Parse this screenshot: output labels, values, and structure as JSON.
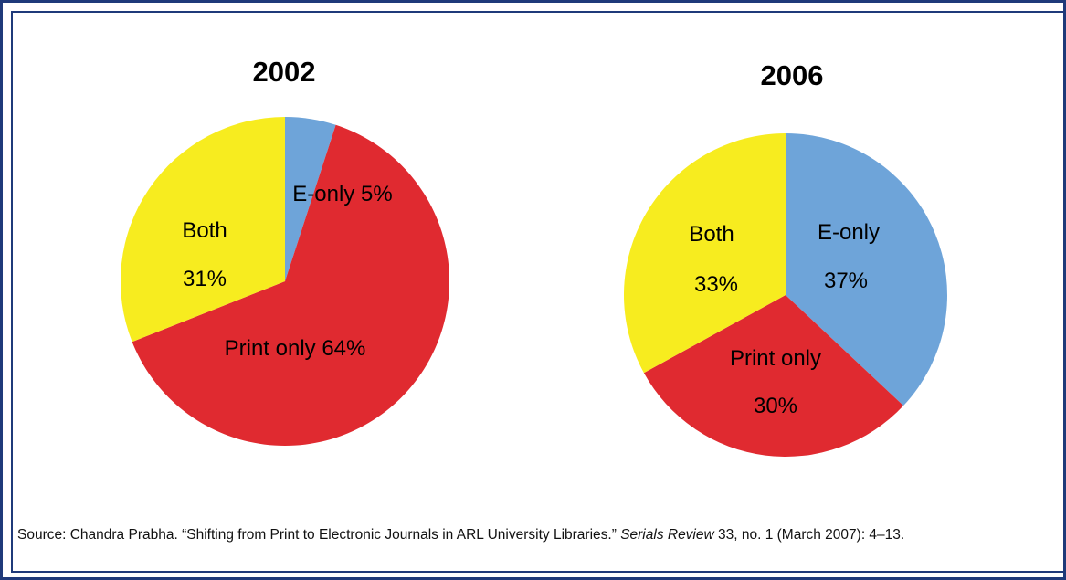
{
  "chart_data": [
    {
      "type": "pie",
      "title": "2002",
      "slices": [
        {
          "label": "E-only",
          "value": 5,
          "value_text": "5%",
          "color": "#6ea4d9"
        },
        {
          "label": "Print only",
          "value": 64,
          "value_text": "64%",
          "color": "#e02a30"
        },
        {
          "label": "Both",
          "value": 31,
          "value_text": "31%",
          "color": "#f7ec1f"
        }
      ]
    },
    {
      "type": "pie",
      "title": "2006",
      "slices": [
        {
          "label": "E-only",
          "value": 37,
          "value_text": "37%",
          "color": "#6ea4d9"
        },
        {
          "label": "Print only",
          "value": 30,
          "value_text": "30%",
          "color": "#e02a30"
        },
        {
          "label": "Both",
          "value": 33,
          "value_text": "33%",
          "color": "#f7ec1f"
        }
      ]
    }
  ],
  "source": {
    "prefix": "Source: Chandra Prabha. “Shifting from Print to Electronic Journals in ARL University Libraries.” ",
    "journal": "Serials Review",
    "suffix": " 33, no. 1 (March 2007): 4–13."
  }
}
